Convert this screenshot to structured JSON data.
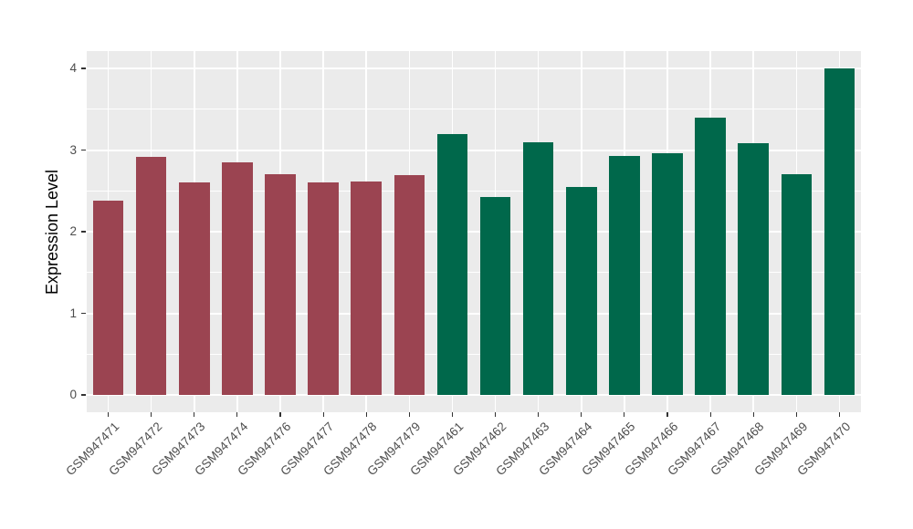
{
  "chart_data": {
    "type": "bar",
    "title": "",
    "xlabel": "",
    "ylabel": "Expression Level",
    "ylim": [
      0,
      4.2
    ],
    "yticks": [
      "0",
      "1",
      "2",
      "3",
      "4"
    ],
    "minor_gridlines_at": [
      0.5,
      1.5,
      2.5,
      3.5
    ],
    "legend_position": "none",
    "panel_background": "#EBEBEB",
    "gridline_color": "#FFFFFF",
    "axis_text_color": "#4D4D4D",
    "tick_mark_color": "#333333",
    "bar_colors": {
      "maroon": "#9B4451",
      "green": "#00684B"
    },
    "categories": [
      "GSM947471",
      "GSM947472",
      "GSM947473",
      "GSM947474",
      "GSM947476",
      "GSM947477",
      "GSM947478",
      "GSM947479",
      "GSM947461",
      "GSM947462",
      "GSM947463",
      "GSM947464",
      "GSM947465",
      "GSM947466",
      "GSM947467",
      "GSM947468",
      "GSM947469",
      "GSM947470"
    ],
    "bars": [
      {
        "label": "GSM947471",
        "value": 2.38,
        "group": "maroon"
      },
      {
        "label": "GSM947472",
        "value": 2.92,
        "group": "maroon"
      },
      {
        "label": "GSM947473",
        "value": 2.6,
        "group": "maroon"
      },
      {
        "label": "GSM947474",
        "value": 2.85,
        "group": "maroon"
      },
      {
        "label": "GSM947476",
        "value": 2.7,
        "group": "maroon"
      },
      {
        "label": "GSM947477",
        "value": 2.6,
        "group": "maroon"
      },
      {
        "label": "GSM947478",
        "value": 2.61,
        "group": "maroon"
      },
      {
        "label": "GSM947479",
        "value": 2.69,
        "group": "maroon"
      },
      {
        "label": "GSM947461",
        "value": 3.2,
        "group": "green"
      },
      {
        "label": "GSM947462",
        "value": 2.43,
        "group": "green"
      },
      {
        "label": "GSM947463",
        "value": 3.1,
        "group": "green"
      },
      {
        "label": "GSM947464",
        "value": 2.55,
        "group": "green"
      },
      {
        "label": "GSM947465",
        "value": 2.93,
        "group": "green"
      },
      {
        "label": "GSM947466",
        "value": 2.96,
        "group": "green"
      },
      {
        "label": "GSM947467",
        "value": 3.4,
        "group": "green"
      },
      {
        "label": "GSM947468",
        "value": 3.08,
        "group": "green"
      },
      {
        "label": "GSM947469",
        "value": 2.7,
        "group": "green"
      },
      {
        "label": "GSM947470",
        "value": 4.0,
        "group": "green"
      }
    ]
  }
}
